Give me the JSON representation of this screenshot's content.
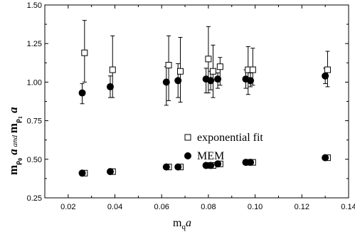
{
  "chart_data": {
    "type": "scatter",
    "title": "",
    "xlabel": "m_q a",
    "ylabel": "m_ρ0 a and m_ρ1 a",
    "xlim": [
      0.01,
      0.14
    ],
    "ylim": [
      0.25,
      1.5
    ],
    "x_ticks": [
      "0.02",
      "0.04",
      "0.06",
      "0.08",
      "0.10",
      "0.12",
      "0.14"
    ],
    "y_ticks": [
      "0.25",
      "0.50",
      "0.75",
      "1.00",
      "1.25",
      "1.50"
    ],
    "grid": false,
    "legend_position": "center-right",
    "series": [
      {
        "name": "exponential fit",
        "marker": "open-square",
        "points": [
          {
            "x": 0.027,
            "y": 0.41
          },
          {
            "x": 0.039,
            "y": 0.42
          },
          {
            "x": 0.063,
            "y": 0.45
          },
          {
            "x": 0.068,
            "y": 0.45
          },
          {
            "x": 0.08,
            "y": 0.46
          },
          {
            "x": 0.082,
            "y": 0.46
          },
          {
            "x": 0.085,
            "y": 0.47
          },
          {
            "x": 0.097,
            "y": 0.48
          },
          {
            "x": 0.099,
            "y": 0.48
          },
          {
            "x": 0.131,
            "y": 0.51
          },
          {
            "x": 0.027,
            "y": 1.19,
            "err": [
              1.0,
              1.4
            ]
          },
          {
            "x": 0.039,
            "y": 1.08,
            "err": [
              0.9,
              1.3
            ]
          },
          {
            "x": 0.063,
            "y": 1.11,
            "err": [
              0.88,
              1.3
            ]
          },
          {
            "x": 0.068,
            "y": 1.07,
            "err": [
              0.87,
              1.29
            ]
          },
          {
            "x": 0.08,
            "y": 1.15,
            "err": [
              0.93,
              1.36
            ]
          },
          {
            "x": 0.082,
            "y": 1.07,
            "err": [
              0.9,
              1.24
            ]
          },
          {
            "x": 0.085,
            "y": 1.1,
            "err": [
              0.98,
              1.16
            ]
          },
          {
            "x": 0.097,
            "y": 1.08,
            "err": [
              0.92,
              1.23
            ]
          },
          {
            "x": 0.099,
            "y": 1.08,
            "err": [
              0.98,
              1.22
            ]
          },
          {
            "x": 0.131,
            "y": 1.08,
            "err": [
              0.97,
              1.2
            ]
          }
        ]
      },
      {
        "name": "MEM",
        "marker": "filled-circle",
        "points": [
          {
            "x": 0.026,
            "y": 0.41
          },
          {
            "x": 0.038,
            "y": 0.42
          },
          {
            "x": 0.062,
            "y": 0.45
          },
          {
            "x": 0.067,
            "y": 0.45
          },
          {
            "x": 0.079,
            "y": 0.46
          },
          {
            "x": 0.081,
            "y": 0.46
          },
          {
            "x": 0.084,
            "y": 0.47
          },
          {
            "x": 0.096,
            "y": 0.48
          },
          {
            "x": 0.098,
            "y": 0.48
          },
          {
            "x": 0.13,
            "y": 0.51
          },
          {
            "x": 0.026,
            "y": 0.93,
            "err": [
              0.86,
              0.99
            ]
          },
          {
            "x": 0.038,
            "y": 0.97,
            "err": [
              0.9,
              1.04
            ]
          },
          {
            "x": 0.062,
            "y": 1.0,
            "err": [
              0.85,
              1.1
            ]
          },
          {
            "x": 0.067,
            "y": 1.01,
            "err": [
              0.9,
              1.12
            ]
          },
          {
            "x": 0.079,
            "y": 1.02,
            "err": [
              0.93,
              1.09
            ]
          },
          {
            "x": 0.081,
            "y": 1.01,
            "err": [
              0.95,
              1.07
            ]
          },
          {
            "x": 0.084,
            "y": 1.02,
            "err": [
              0.96,
              1.06
            ]
          },
          {
            "x": 0.096,
            "y": 1.02,
            "err": [
              0.96,
              1.08
            ]
          },
          {
            "x": 0.098,
            "y": 1.01,
            "err": [
              0.97,
              1.06
            ]
          },
          {
            "x": 0.13,
            "y": 1.04,
            "err": [
              0.99,
              1.09
            ]
          }
        ]
      }
    ]
  }
}
